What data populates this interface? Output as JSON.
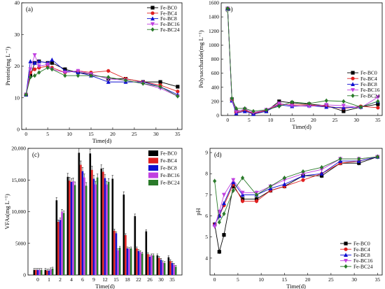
{
  "colors": {
    "Fe-BC0": "#000000",
    "Fe-BC4": "#e02020",
    "Fe-BC8": "#1010d0",
    "Fe-BC16": "#c040e0",
    "Fe-BC24": "#2a7a2a"
  },
  "chart_data": [
    {
      "type": "line",
      "panel_label": "(a)",
      "xlabel": "Time(d)",
      "ylabel": "Protein(mg L⁻¹)",
      "xlim": [
        -1,
        36
      ],
      "ylim": [
        0,
        40
      ],
      "xticks": [
        0,
        5,
        10,
        15,
        20,
        25,
        30,
        35
      ],
      "yticks": [
        0,
        10,
        20,
        30,
        40
      ],
      "legend_position": "top-right",
      "x": [
        0,
        1,
        2,
        3,
        5,
        6,
        9,
        12,
        15,
        19,
        23,
        27,
        31,
        35
      ],
      "series": [
        {
          "name": "Fe-BC0",
          "marker": "square",
          "values": [
            11,
            17,
            21,
            21.5,
            21,
            21,
            19,
            18,
            17.5,
            16,
            16,
            15,
            15,
            13.5
          ]
        },
        {
          "name": "Fe-BC4",
          "marker": "circle",
          "values": [
            11,
            18,
            19,
            19.5,
            20,
            19.5,
            18,
            18.5,
            18,
            18.5,
            16,
            15,
            14,
            12
          ]
        },
        {
          "name": "Fe-BC8",
          "marker": "triangle-up",
          "values": [
            11,
            21.5,
            21,
            21.5,
            21,
            22,
            18.5,
            18,
            17,
            15,
            15,
            15,
            13.5,
            11
          ]
        },
        {
          "name": "Fe-BC16",
          "marker": "triangle-down",
          "values": [
            11,
            19,
            23.5,
            20,
            20.5,
            19,
            18,
            18.5,
            17.5,
            16,
            15.5,
            14.5,
            13,
            10.5
          ]
        },
        {
          "name": "Fe-BC24",
          "marker": "diamond",
          "values": [
            11,
            16.5,
            17,
            18,
            19.5,
            19,
            17,
            17,
            17,
            16.5,
            15.5,
            14.5,
            13.5,
            10.5
          ]
        }
      ]
    },
    {
      "type": "line",
      "panel_label": "(b)",
      "xlabel": "Time(d)",
      "ylabel": "Polysaccharide(mg L⁻¹)",
      "xlim": [
        -1.5,
        36
      ],
      "ylim": [
        0,
        1600
      ],
      "xticks": [
        0,
        5,
        10,
        15,
        20,
        25,
        30,
        35
      ],
      "yticks": [
        0,
        200,
        400,
        600,
        800,
        1000,
        1200,
        1400,
        1600
      ],
      "legend_position": "middle-right",
      "x": [
        0,
        1,
        2,
        4,
        6,
        9,
        12,
        15,
        19,
        23,
        27,
        31,
        35
      ],
      "series": [
        {
          "name": "Fe-BC0",
          "marker": "square",
          "values": [
            1520,
            230,
            60,
            80,
            20,
            60,
            200,
            180,
            160,
            140,
            60,
            120,
            160
          ]
        },
        {
          "name": "Fe-BC4",
          "marker": "circle",
          "values": [
            1520,
            220,
            40,
            70,
            30,
            70,
            160,
            150,
            150,
            130,
            100,
            130,
            110
          ]
        },
        {
          "name": "Fe-BC8",
          "marker": "triangle-up",
          "values": [
            1520,
            210,
            30,
            60,
            20,
            60,
            150,
            130,
            140,
            120,
            110,
            120,
            200
          ]
        },
        {
          "name": "Fe-BC16",
          "marker": "triangle-down",
          "values": [
            1520,
            220,
            50,
            90,
            40,
            80,
            170,
            140,
            130,
            150,
            140,
            110,
            260
          ]
        },
        {
          "name": "Fe-BC24",
          "marker": "diamond",
          "values": [
            1520,
            240,
            100,
            100,
            60,
            80,
            130,
            190,
            170,
            210,
            200,
            120,
            200
          ]
        }
      ]
    },
    {
      "type": "bar",
      "panel_label": "(c)",
      "xlabel": "Time(d)",
      "ylabel": "VFAs(mg L⁻¹)",
      "ylim": [
        0,
        20000
      ],
      "yticks": [
        0,
        5000,
        10000,
        15000,
        20000
      ],
      "ytick_labels": [
        "0",
        "5000",
        "10,000",
        "15,000",
        "20,000"
      ],
      "legend_position": "top-right",
      "categories": [
        "0",
        "1",
        "2",
        "4",
        "6",
        "9",
        "12",
        "15",
        "18",
        "22",
        "26",
        "30",
        "35"
      ],
      "series": [
        {
          "name": "Fe-BC0",
          "values": [
            800,
            800,
            11800,
            15500,
            19300,
            19200,
            16800,
            15200,
            12700,
            9300,
            6900,
            3100,
            2800
          ]
        },
        {
          "name": "Fe-BC4",
          "values": [
            800,
            700,
            8400,
            14900,
            17400,
            16600,
            16300,
            7000,
            6300,
            4200,
            3300,
            2700,
            2200
          ]
        },
        {
          "name": "Fe-BC8",
          "values": [
            800,
            700,
            8700,
            14700,
            16400,
            15200,
            15300,
            6600,
            4200,
            3800,
            2900,
            2400,
            1900
          ]
        },
        {
          "name": "Fe-BC16",
          "values": [
            800,
            900,
            10000,
            14800,
            15400,
            14300,
            14300,
            3900,
            4100,
            3600,
            3100,
            2000,
            1600
          ]
        },
        {
          "name": "Fe-BC24",
          "values": [
            800,
            1000,
            9800,
            14200,
            14100,
            15400,
            14700,
            4300,
            4200,
            3400,
            3100,
            1900,
            1300
          ]
        }
      ]
    },
    {
      "type": "line",
      "panel_label": "(d)",
      "xlabel": "Time(d)",
      "ylabel": "pH",
      "xlim": [
        -1,
        36
      ],
      "ylim": [
        3.2,
        9.2
      ],
      "xticks": [
        0,
        5,
        10,
        15,
        20,
        25,
        30,
        35
      ],
      "yticks": [
        4,
        5,
        6,
        7,
        8,
        9
      ],
      "legend_position": "bottom-right",
      "x": [
        0,
        1,
        2,
        4,
        6,
        9,
        12,
        15,
        19,
        23,
        27,
        31,
        35
      ],
      "series": [
        {
          "name": "Fe-BC0",
          "marker": "square",
          "values": [
            5.6,
            4.3,
            5.1,
            7.4,
            6.8,
            6.8,
            7.2,
            7.4,
            7.9,
            7.9,
            8.5,
            8.5,
            8.8
          ]
        },
        {
          "name": "Fe-BC4",
          "marker": "circle",
          "values": [
            5.6,
            6.0,
            6.5,
            7.5,
            6.7,
            6.7,
            7.2,
            7.4,
            7.7,
            8.0,
            8.5,
            8.6,
            8.8
          ]
        },
        {
          "name": "Fe-BC8",
          "marker": "triangle-up",
          "values": [
            5.6,
            6.0,
            6.6,
            7.6,
            7.0,
            7.0,
            7.3,
            7.5,
            7.9,
            8.0,
            8.6,
            8.6,
            8.8
          ]
        },
        {
          "name": "Fe-BC16",
          "marker": "triangle-down",
          "values": [
            5.5,
            6.2,
            7.0,
            7.7,
            7.1,
            7.1,
            7.4,
            7.7,
            8.0,
            8.2,
            8.7,
            8.7,
            8.8
          ]
        },
        {
          "name": "Fe-BC24",
          "marker": "diamond",
          "values": [
            7.65,
            5.7,
            6.1,
            7.2,
            7.8,
            7.0,
            7.4,
            7.8,
            8.1,
            8.3,
            8.7,
            8.7,
            8.8
          ]
        }
      ]
    }
  ]
}
